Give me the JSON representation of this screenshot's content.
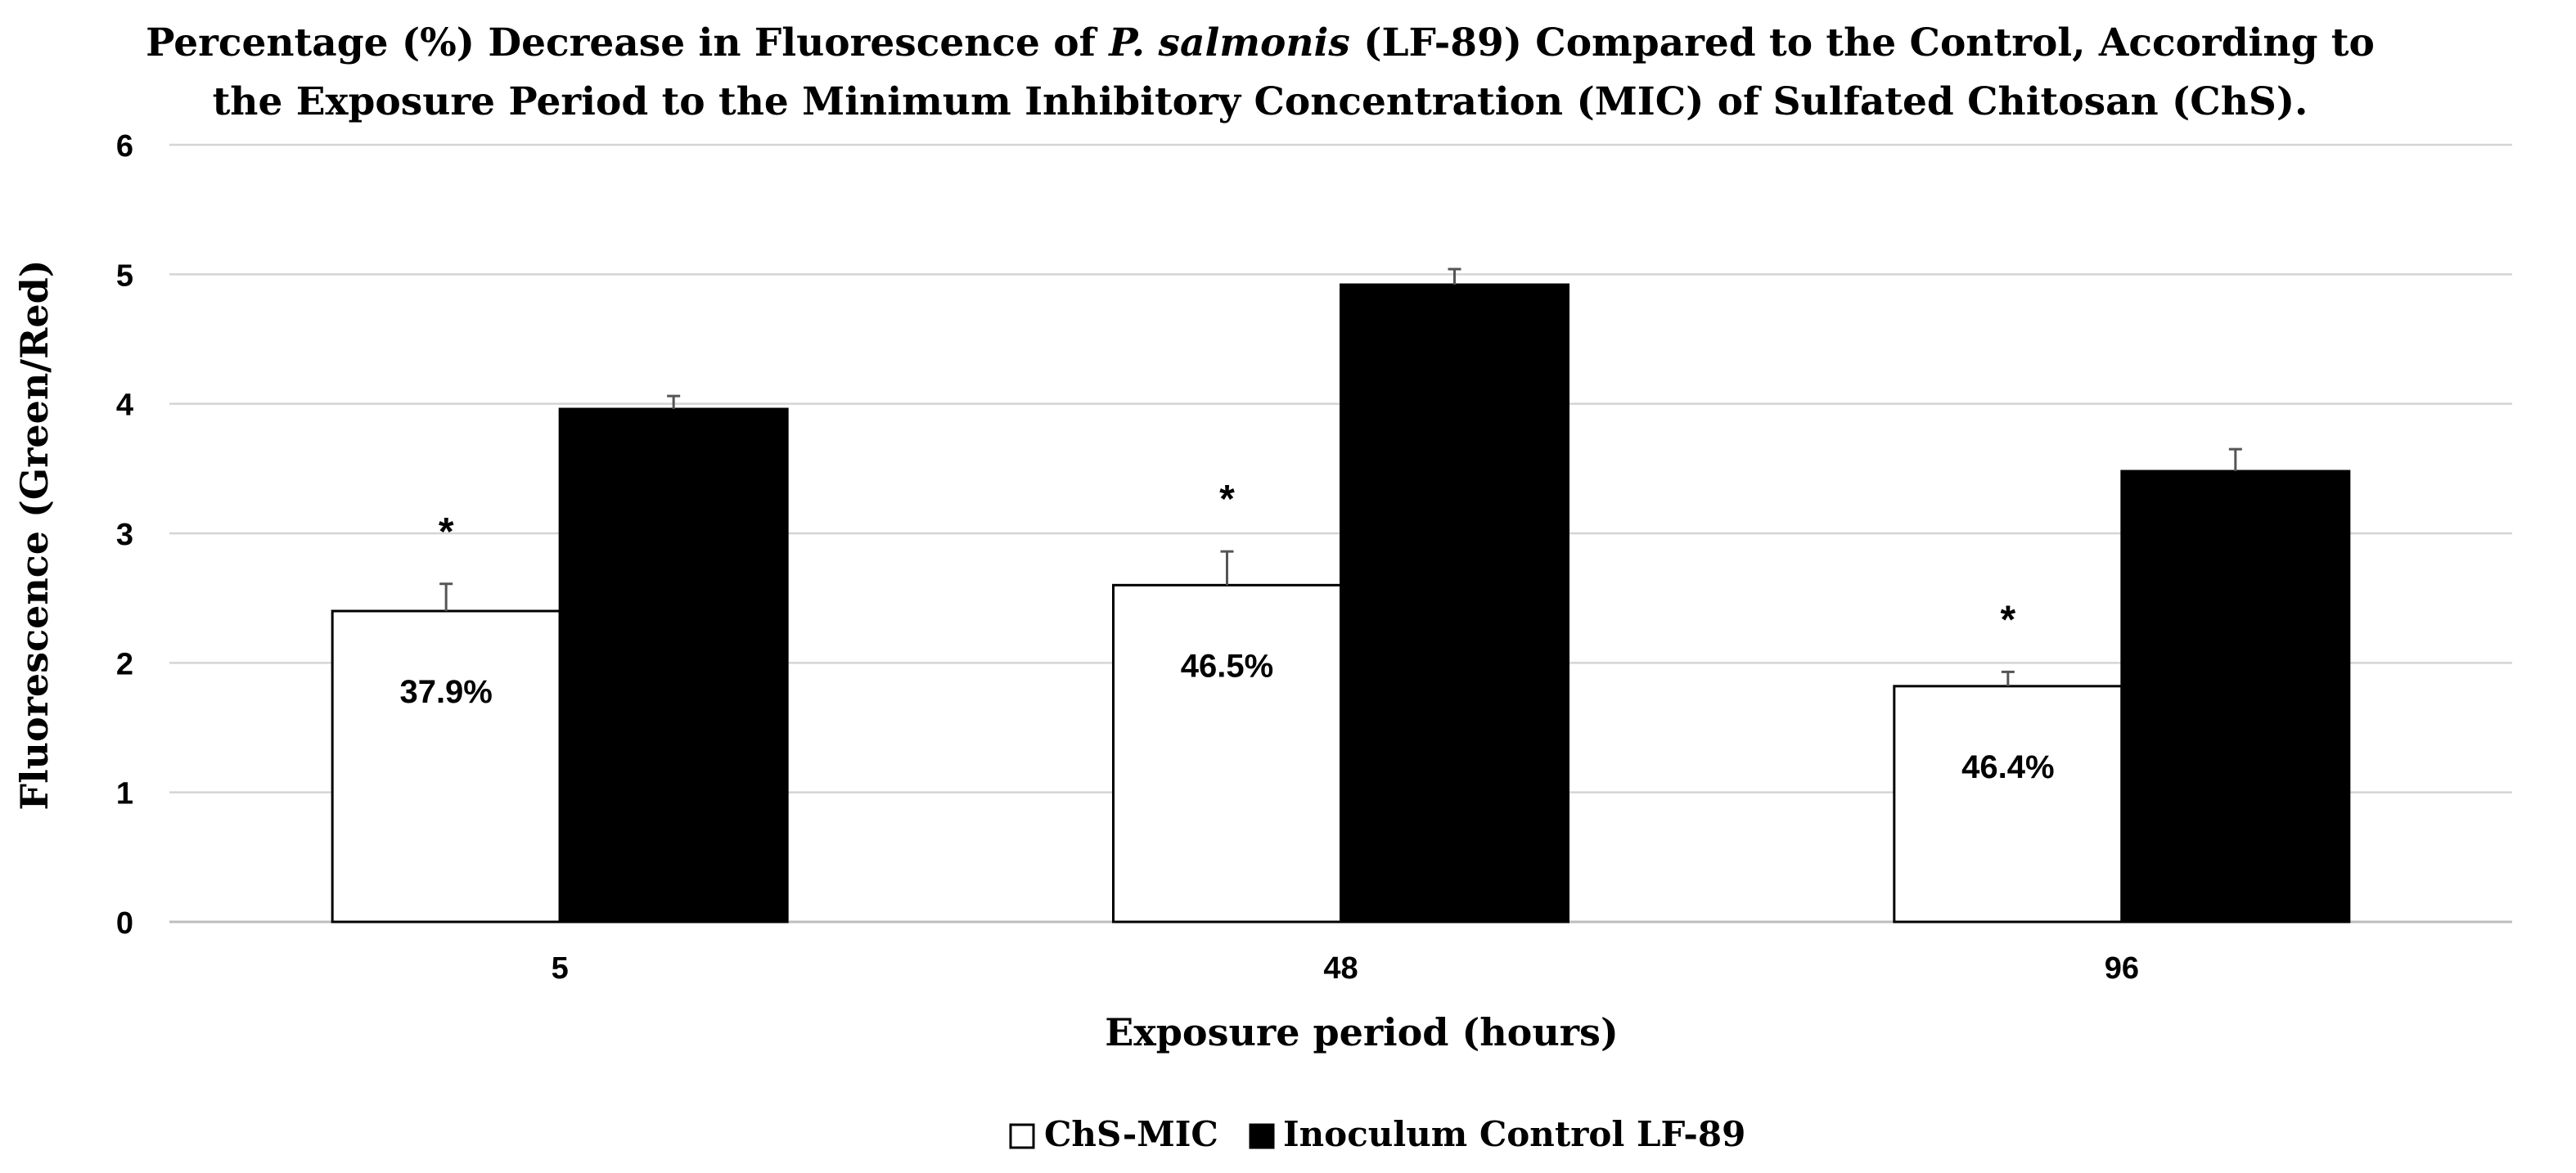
{
  "chart_data": {
    "type": "bar",
    "title_parts": [
      {
        "text": "Percentage (%) Decrease in Fluorescence of ",
        "italic": false
      },
      {
        "text": "P. salmonis",
        "italic": true
      },
      {
        "text": " (LF-89) Compared to the Control, According to",
        "italic": false
      }
    ],
    "title_line2": "the Exposure Period to the Minimum Inhibitory Concentration (MIC) of Sulfated Chitosan (ChS).",
    "xlabel": "Exposure period (hours)",
    "ylabel": "Fluorescence (Green/Red)",
    "categories": [
      "5",
      "48",
      "96"
    ],
    "ylim": [
      0,
      6
    ],
    "yticks": [
      "0",
      "1",
      "2",
      "3",
      "4",
      "5",
      "6"
    ],
    "grid": true,
    "legend_position": "bottom-center",
    "series": [
      {
        "name": "ChS-MIC",
        "color": "#ffffff",
        "stroke": "#000000",
        "values": [
          2.4,
          2.6,
          1.82
        ],
        "errors": [
          0.21,
          0.26,
          0.11
        ],
        "labels": [
          "37.9%",
          "46.5%",
          "46.4%"
        ],
        "significance": [
          "*",
          "*",
          "*"
        ]
      },
      {
        "name": "Inoculum Control LF-89",
        "color": "#000000",
        "stroke": "#000000",
        "values": [
          3.96,
          4.92,
          3.48
        ],
        "errors": [
          0.1,
          0.12,
          0.17
        ]
      }
    ]
  }
}
